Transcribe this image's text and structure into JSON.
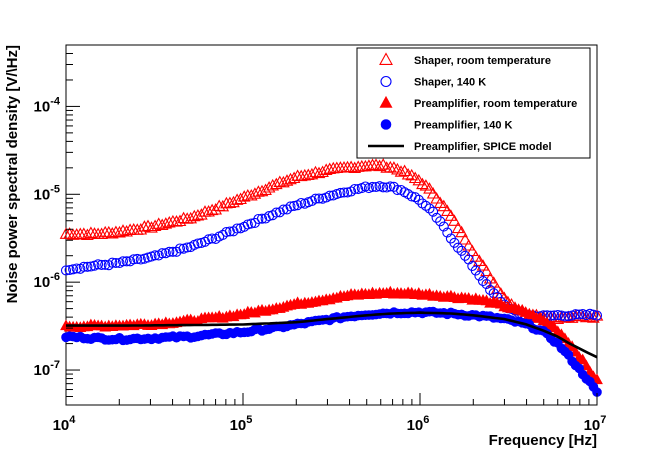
{
  "chart_data": {
    "type": "scatter",
    "title": "",
    "xlabel": "Frequency [Hz]",
    "ylabel": "Noise power spectral density [V/\\Hz]",
    "xscale": "log",
    "yscale": "log",
    "xlim": [
      10000,
      10000000
    ],
    "ylim": [
      4e-08,
      0.0005
    ],
    "x_tick_labels": [
      {
        "base": "10",
        "exp": "4",
        "value": 10000
      },
      {
        "base": "10",
        "exp": "5",
        "value": 100000
      },
      {
        "base": "10",
        "exp": "6",
        "value": 1000000
      },
      {
        "base": "10",
        "exp": "7",
        "value": 10000000
      }
    ],
    "y_tick_labels": [
      {
        "base": "10",
        "exp": "-7",
        "value": 1e-07
      },
      {
        "base": "10",
        "exp": "-6",
        "value": 1e-06
      },
      {
        "base": "10",
        "exp": "-5",
        "value": 1e-05
      },
      {
        "base": "10",
        "exp": "-4",
        "value": 0.0001
      }
    ],
    "legend_position": "top-right",
    "series": [
      {
        "name": "Shaper, room temperature",
        "marker": "triangle-open",
        "color": "#ff0000",
        "x": [
          10000,
          15000,
          20000,
          30000,
          50000,
          70000,
          100000,
          150000,
          200000,
          300000,
          400000,
          500000,
          600000,
          700000,
          800000,
          1000000,
          1200000,
          1500000,
          2000000,
          2500000,
          3000000,
          3500000,
          4000000,
          5000000,
          6000000,
          7000000,
          8000000,
          10000000
        ],
        "y": [
          3.5e-06,
          3.5e-06,
          3.7e-06,
          4.2e-06,
          5.3e-06,
          6.8e-06,
          9e-06,
          1.25e-05,
          1.55e-05,
          1.85e-05,
          2e-05,
          2.1e-05,
          2.1e-05,
          2e-05,
          1.8e-05,
          1.4e-05,
          1e-05,
          5.5e-06,
          2.2e-06,
          1.1e-06,
          6.5e-07,
          5e-07,
          4.3e-07,
          4e-07,
          3.9e-07,
          3.9e-07,
          4e-07,
          4e-07
        ]
      },
      {
        "name": "Shaper, 140 K",
        "marker": "circle-open",
        "color": "#0000ff",
        "x": [
          10000,
          15000,
          20000,
          30000,
          50000,
          70000,
          100000,
          150000,
          200000,
          300000,
          400000,
          500000,
          600000,
          700000,
          800000,
          1000000,
          1200000,
          1500000,
          2000000,
          2500000,
          3000000,
          3500000,
          4000000,
          5000000,
          6000000,
          7000000,
          8000000,
          10000000
        ],
        "y": [
          1.4e-06,
          1.55e-06,
          1.65e-06,
          1.9e-06,
          2.5e-06,
          3.2e-06,
          4.3e-06,
          6e-06,
          7.5e-06,
          9.5e-06,
          1.1e-05,
          1.2e-05,
          1.25e-05,
          1.2e-05,
          1.1e-05,
          8.5e-06,
          6e-06,
          3.2e-06,
          1.5e-06,
          8e-07,
          5.5e-07,
          4.5e-07,
          4.2e-07,
          4.1e-07,
          4.2e-07,
          4.2e-07,
          4.2e-07,
          4.3e-07
        ]
      },
      {
        "name": "Preamplifier, room temperature",
        "marker": "triangle-filled",
        "color": "#ff0000",
        "x": [
          10000,
          15000,
          20000,
          30000,
          50000,
          70000,
          100000,
          150000,
          200000,
          300000,
          400000,
          500000,
          700000,
          1000000,
          1500000,
          2000000,
          2500000,
          3000000,
          4000000,
          5000000,
          6000000,
          7000000,
          8000000,
          9000000,
          10000000
        ],
        "y": [
          3.1e-07,
          3.15e-07,
          3.2e-07,
          3.3e-07,
          3.6e-07,
          3.9e-07,
          4.3e-07,
          5e-07,
          5.6e-07,
          6.4e-07,
          7e-07,
          7.3e-07,
          7.5e-07,
          7.3e-07,
          6.8e-07,
          6.4e-07,
          5.9e-07,
          5.3e-07,
          4.5e-07,
          3.6e-07,
          2.8e-07,
          2e-07,
          1.4e-07,
          1e-07,
          7.5e-08
        ]
      },
      {
        "name": "Preamplifier, 140 K",
        "marker": "circle-filled",
        "color": "#0000ff",
        "x": [
          10000,
          15000,
          20000,
          30000,
          50000,
          70000,
          100000,
          150000,
          200000,
          300000,
          400000,
          500000,
          700000,
          1000000,
          1500000,
          2000000,
          2500000,
          3000000,
          4000000,
          5000000,
          6000000,
          7000000,
          8000000,
          9000000,
          10000000
        ],
        "y": [
          2.4e-07,
          2.3e-07,
          2.25e-07,
          2.3e-07,
          2.4e-07,
          2.55e-07,
          2.7e-07,
          3e-07,
          3.3e-07,
          3.75e-07,
          4.1e-07,
          4.3e-07,
          4.5e-07,
          4.55e-07,
          4.4e-07,
          4.2e-07,
          4e-07,
          3.8e-07,
          3.3e-07,
          2.7e-07,
          2e-07,
          1.4e-07,
          1e-07,
          7.5e-08,
          5.5e-08
        ]
      },
      {
        "name": "Preamplifier, SPICE model",
        "marker": "line",
        "color": "#000000",
        "x": [
          10000,
          20000,
          50000,
          100000,
          200000,
          300000,
          500000,
          700000,
          1000000,
          1500000,
          2000000,
          3000000,
          4000000,
          5000000,
          6000000,
          7000000,
          8000000,
          9000000,
          10000000
        ],
        "y": [
          3.2e-07,
          3.2e-07,
          3.25e-07,
          3.3e-07,
          3.5e-07,
          3.8e-07,
          4.2e-07,
          4.4e-07,
          4.5e-07,
          4.4e-07,
          4.2e-07,
          3.8e-07,
          3.3e-07,
          2.8e-07,
          2.4e-07,
          2e-07,
          1.75e-07,
          1.55e-07,
          1.4e-07
        ]
      }
    ]
  }
}
